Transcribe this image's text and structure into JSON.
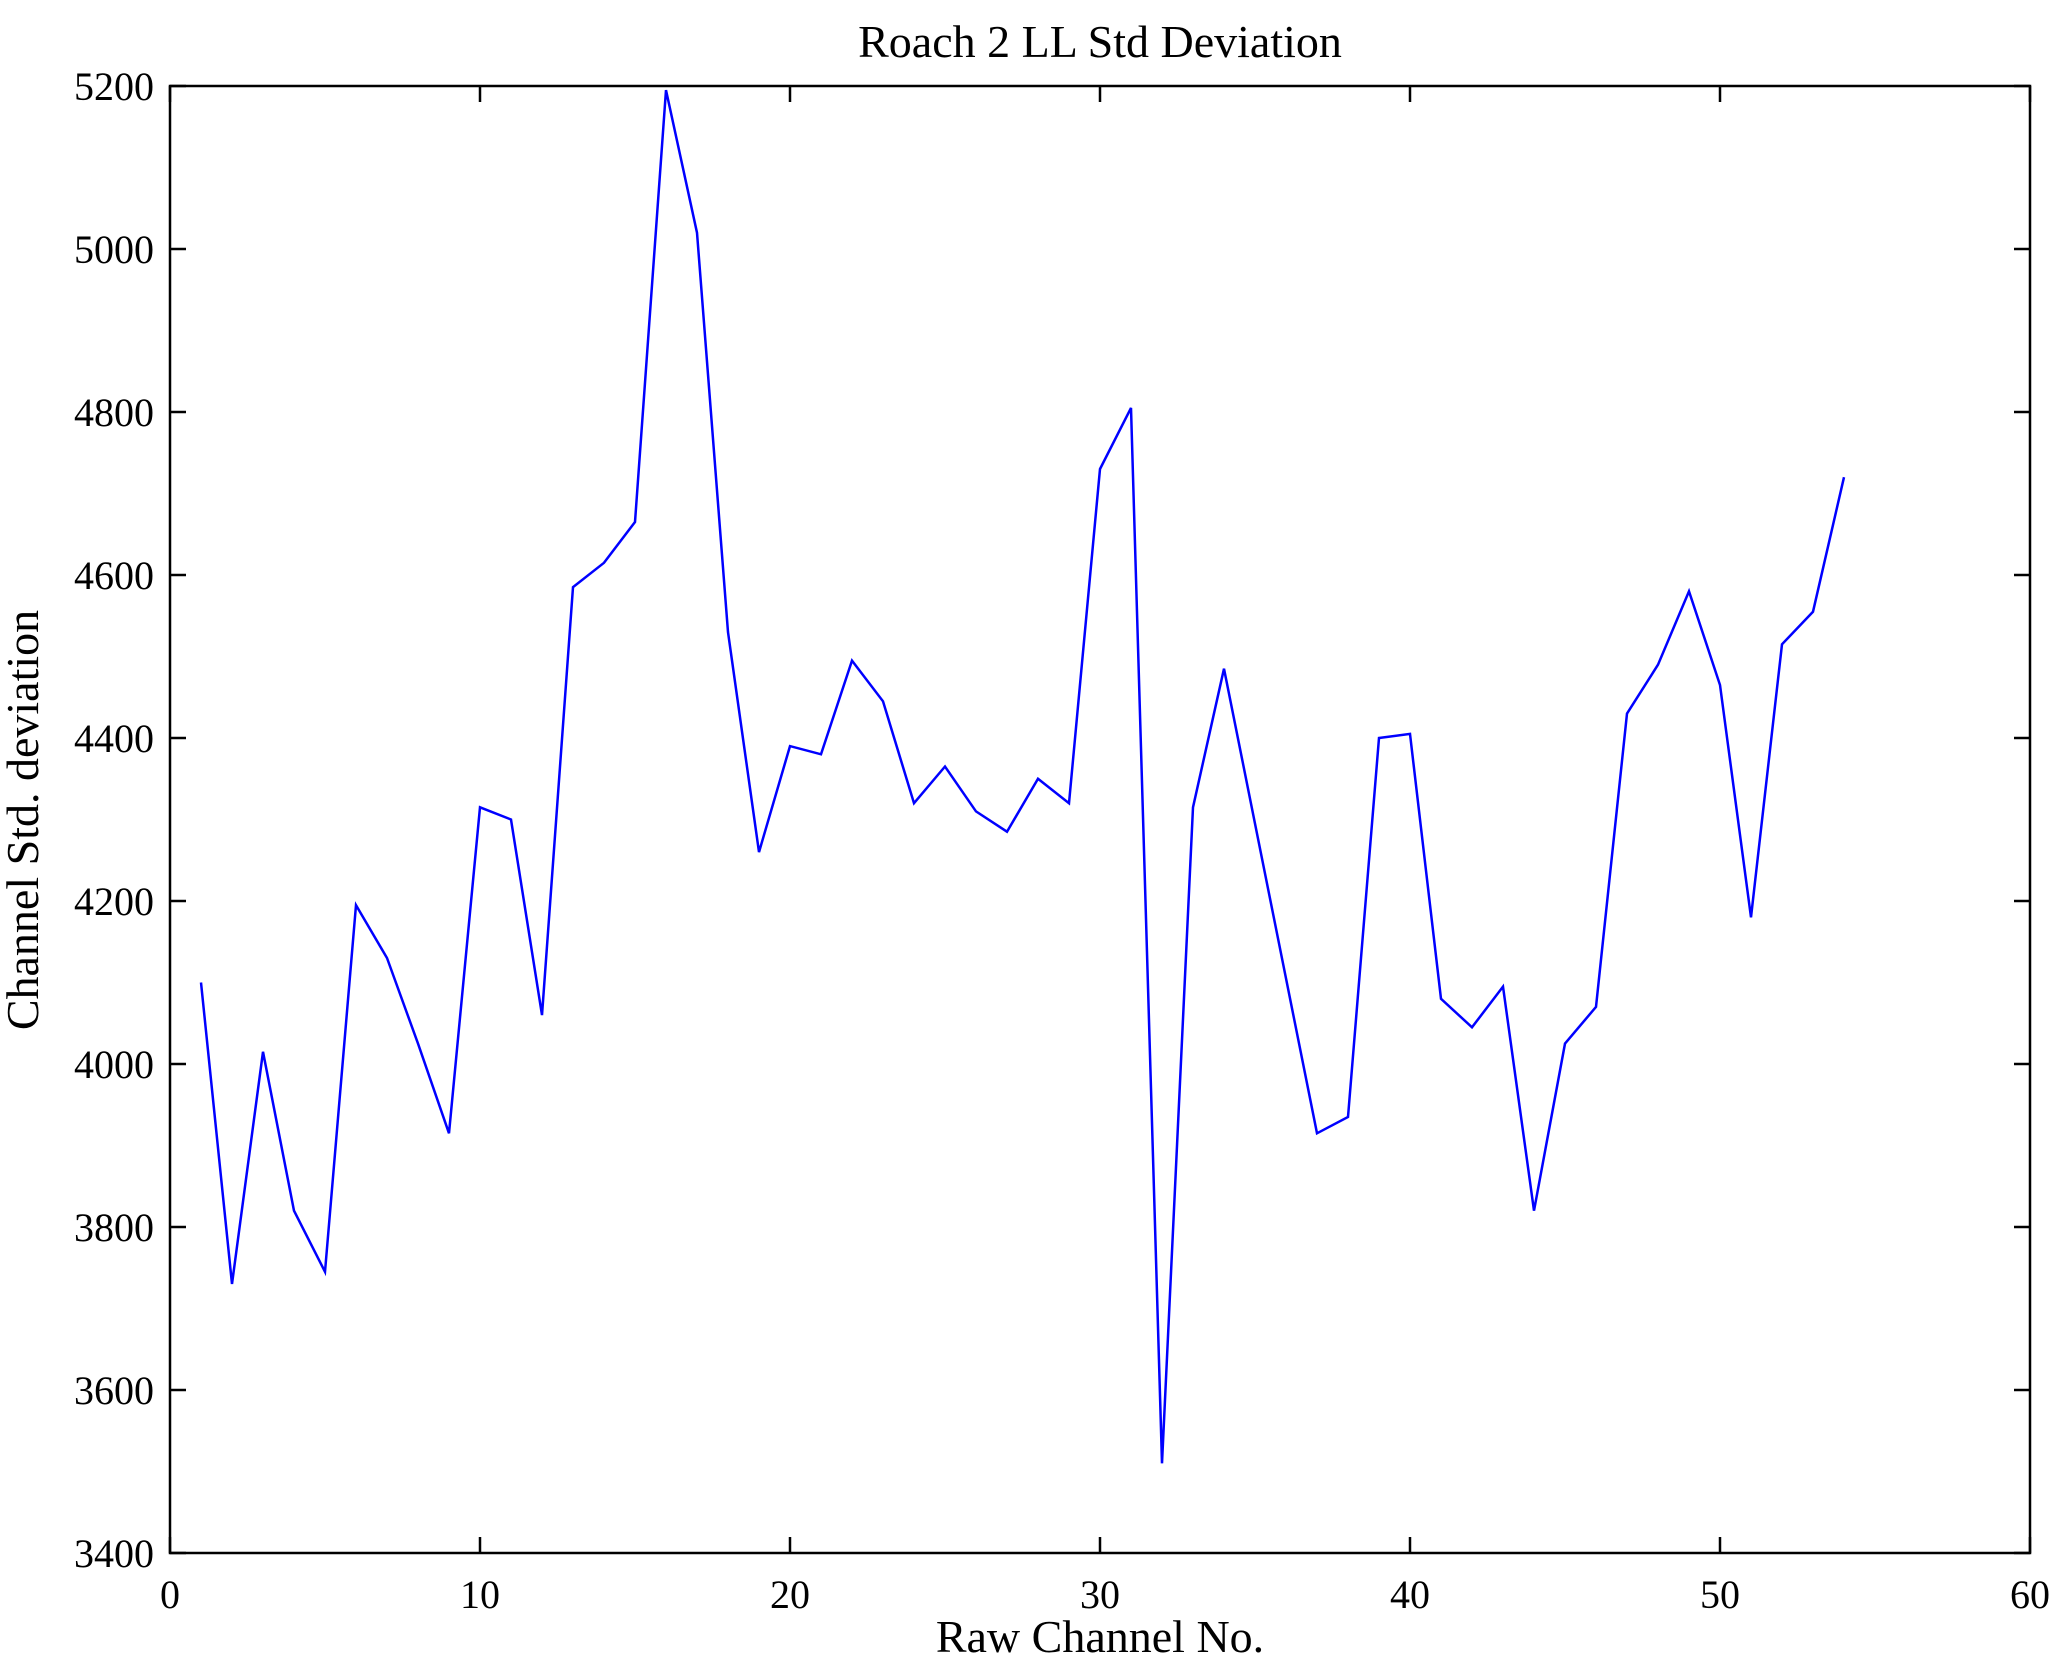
{
  "chart_data": {
    "type": "line",
    "title": "Roach 2 LL Std Deviation",
    "xlabel": "Raw Channel No.",
    "ylabel": "Channel Std. deviation",
    "xlim": [
      0,
      60
    ],
    "ylim": [
      3400,
      5200
    ],
    "xticks": [
      0,
      10,
      20,
      30,
      40,
      50,
      60
    ],
    "yticks": [
      3400,
      3600,
      3800,
      4000,
      4200,
      4400,
      4600,
      4800,
      5000,
      5200
    ],
    "grid": false,
    "legend": null,
    "axes_box": true,
    "tick_direction": "in",
    "colors": {
      "line": "#0000FF",
      "axis": "#000000",
      "background": "#FFFFFF"
    },
    "series": [
      {
        "name": "Channel Std. deviation",
        "x": [
          1,
          2,
          3,
          4,
          5,
          6,
          7,
          8,
          9,
          10,
          11,
          12,
          13,
          14,
          15,
          16,
          17,
          18,
          19,
          20,
          21,
          22,
          23,
          24,
          25,
          26,
          27,
          28,
          29,
          30,
          31,
          32,
          33,
          34,
          35,
          36,
          37,
          38,
          39,
          40,
          41,
          42,
          43,
          44,
          45,
          46,
          47,
          48,
          49,
          50,
          51,
          52,
          53,
          54
        ],
        "values": [
          4100,
          3730,
          4015,
          3820,
          3745,
          4195,
          4130,
          4025,
          3915,
          4315,
          4300,
          4060,
          4585,
          4615,
          4665,
          5195,
          5020,
          4530,
          4260,
          4390,
          4380,
          4495,
          4445,
          4320,
          4365,
          4310,
          4285,
          4350,
          4320,
          4730,
          4805,
          3510,
          4315,
          4485,
          4295,
          4105,
          3915,
          3935,
          4400,
          4405,
          4080,
          4045,
          4095,
          3820,
          4025,
          4070,
          4430,
          4490,
          4580,
          4465,
          4180,
          4515,
          4555,
          4720
        ]
      }
    ]
  }
}
